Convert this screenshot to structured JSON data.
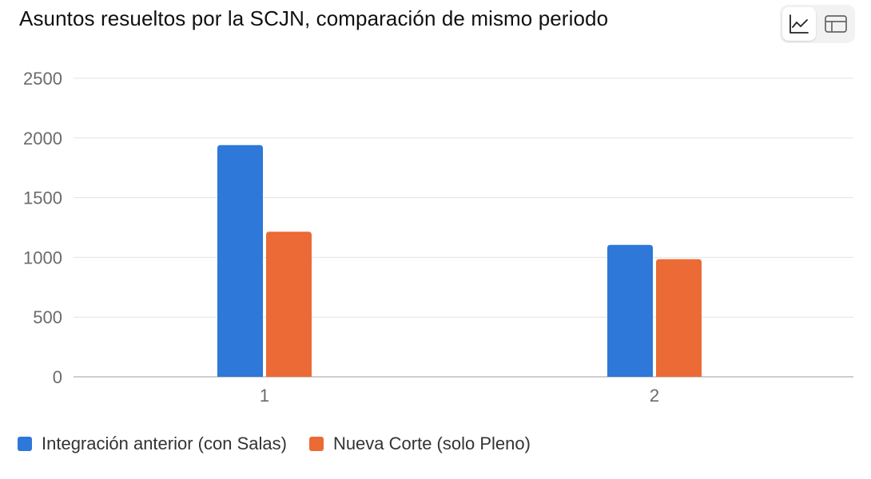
{
  "title": "Asuntos resueltos por la SCJN, comparación de mismo periodo",
  "view_toggle": {
    "line_view_icon": "line-chart-icon",
    "table_view_icon": "table-icon",
    "active": "line"
  },
  "colors": {
    "series_1": "#2d78d8",
    "series_2": "#eb6a36",
    "grid": "#e3e3e3",
    "axis_text": "#6b6b6b"
  },
  "chart_data": {
    "type": "bar",
    "title": "Asuntos resueltos por la SCJN, comparación de mismo periodo",
    "categories": [
      "1",
      "2"
    ],
    "series": [
      {
        "name": "Integración anterior (con Salas)",
        "values": [
          1940,
          1105
        ]
      },
      {
        "name": "Nueva Corte (solo Pleno)",
        "values": [
          1215,
          985
        ]
      }
    ],
    "ylim": [
      0,
      2500
    ],
    "yticks": [
      0,
      500,
      1000,
      1500,
      2000,
      2500
    ],
    "xlabel": "",
    "ylabel": "",
    "grid": true,
    "legend": "bottom-left"
  }
}
